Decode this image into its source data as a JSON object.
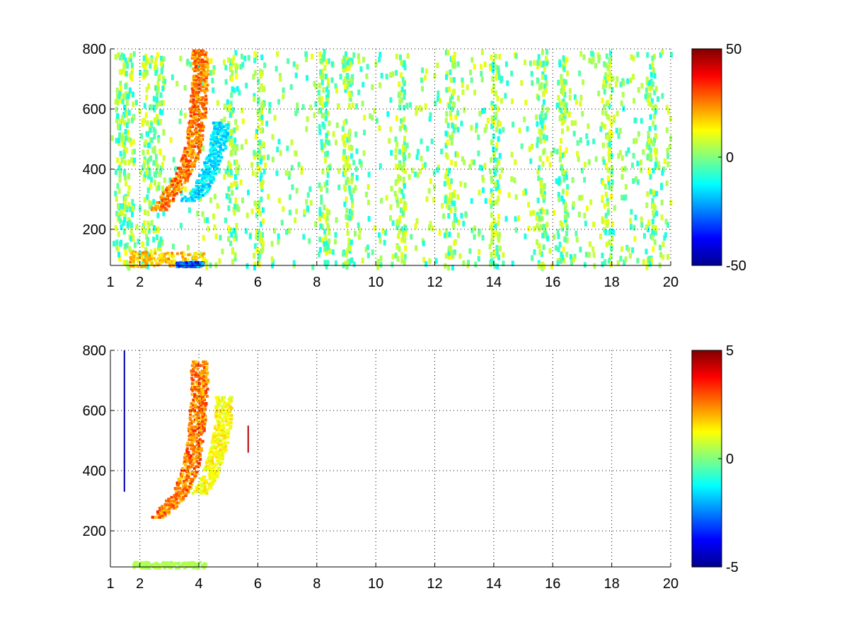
{
  "chart_data": [
    {
      "type": "heatmap",
      "title": "",
      "xlabel": "",
      "ylabel": "",
      "xlim": [
        1,
        20
      ],
      "ylim": [
        80,
        800
      ],
      "xticks": [
        1,
        2,
        4,
        6,
        8,
        10,
        12,
        14,
        16,
        18,
        20
      ],
      "yticks": [
        200,
        400,
        600,
        800
      ],
      "grid": true,
      "colormap": "jet",
      "clim": [
        -50,
        50
      ],
      "colorbar_ticks": [
        50,
        0,
        -50
      ],
      "features": [
        {
          "kind": "ridge",
          "points": [
            [
              2.6,
              270
            ],
            [
              3.0,
              320
            ],
            [
              3.4,
              380
            ],
            [
              3.7,
              450
            ],
            [
              3.9,
              560
            ],
            [
              4.0,
              700
            ],
            [
              4.0,
              800
            ]
          ],
          "value": 30
        },
        {
          "kind": "ridge",
          "points": [
            [
              3.6,
              300
            ],
            [
              4.0,
              330
            ],
            [
              4.3,
              400
            ],
            [
              4.6,
              470
            ],
            [
              4.7,
              560
            ]
          ],
          "value": -18
        },
        {
          "kind": "band",
          "x_range": [
            1.6,
            4.2
          ],
          "y_range": [
            80,
            130
          ],
          "value": 20
        },
        {
          "kind": "band",
          "x_range": [
            3.2,
            4.1
          ],
          "y_range": [
            80,
            95
          ],
          "value": -30
        }
      ],
      "noise_columns": [
        1.3,
        1.6,
        2.2,
        2.6,
        5.1,
        6.0,
        8.2,
        9.0,
        10.8,
        12.5,
        14.0,
        15.6,
        16.3,
        17.8,
        19.3
      ]
    },
    {
      "type": "heatmap",
      "title": "",
      "xlabel": "",
      "ylabel": "",
      "xlim": [
        1,
        20
      ],
      "ylim": [
        80,
        800
      ],
      "xticks": [
        1,
        2,
        4,
        6,
        8,
        10,
        12,
        14,
        16,
        18,
        20
      ],
      "yticks": [
        200,
        400,
        600,
        800
      ],
      "grid": true,
      "colormap": "jet",
      "clim": [
        -5,
        5
      ],
      "colorbar_ticks": [
        5,
        0,
        -5
      ],
      "features": [
        {
          "kind": "ridge",
          "points": [
            [
              2.6,
              250
            ],
            [
              3.0,
              290
            ],
            [
              3.4,
              340
            ],
            [
              3.7,
              420
            ],
            [
              3.9,
              560
            ],
            [
              4.0,
              700
            ],
            [
              3.95,
              770
            ]
          ],
          "value": 3
        },
        {
          "kind": "ridge",
          "points": [
            [
              4.0,
              330
            ],
            [
              4.3,
              380
            ],
            [
              4.6,
              470
            ],
            [
              4.8,
              560
            ],
            [
              4.8,
              650
            ]
          ],
          "value": 1.5
        },
        {
          "kind": "line",
          "x": 1.45,
          "y_range": [
            330,
            800
          ],
          "value": -4.5
        },
        {
          "kind": "line",
          "x": 5.65,
          "y_range": [
            460,
            550
          ],
          "value": 4.5
        },
        {
          "kind": "band",
          "x_range": [
            1.7,
            4.2
          ],
          "y_range": [
            80,
            100
          ],
          "value": 0.5
        }
      ]
    }
  ]
}
